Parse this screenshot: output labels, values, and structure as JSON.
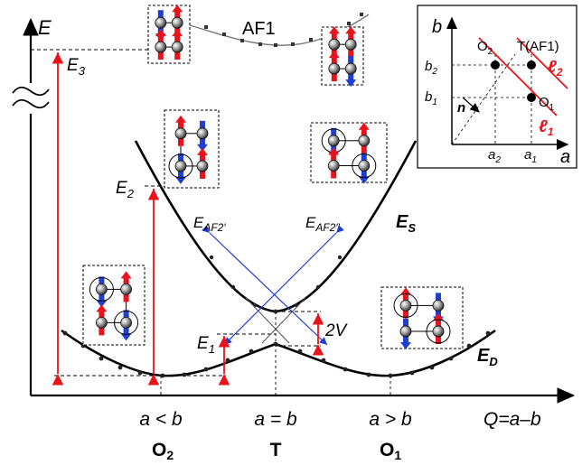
{
  "axes": {
    "y_label": "E",
    "x_label": "Q=a–b"
  },
  "energy_labels": {
    "e3": "E",
    "e3_sub": "3",
    "e2": "E",
    "e2_sub": "2",
    "e1": "E",
    "e1_sub": "1",
    "gap": "2V",
    "es": "E",
    "es_sub": "S",
    "ed": "E",
    "ed_sub": "D",
    "af2p": "E",
    "af2p_sub": "AF2′",
    "af2pp": "E",
    "af2pp_sub": "AF2′′",
    "af1": "AF1"
  },
  "x_ticks": {
    "left": "a < b",
    "center": "a = b",
    "right": "a > b"
  },
  "phases": {
    "left": "O",
    "left_sub": "2",
    "center": "T",
    "right": "O",
    "right_sub": "1"
  },
  "inset": {
    "b_axis": "b",
    "a_axis": "a",
    "b2": "b",
    "b2_sub": "2",
    "b1": "b",
    "b1_sub": "1",
    "a2": "a",
    "a2_sub": "2",
    "a1": "a",
    "a1_sub": "1",
    "o2": "O",
    "o2_sub": "2",
    "o1": "O",
    "o1_sub": "1",
    "t": "T(AF1)",
    "n": "n",
    "l2": "ℓ",
    "l2_sub": "2",
    "l1": "ℓ",
    "l1_sub": "1"
  },
  "colors": {
    "red": "#e8141b",
    "blue": "#1f3fd0",
    "curve": "#000000",
    "af1_curve": "#777777"
  }
}
